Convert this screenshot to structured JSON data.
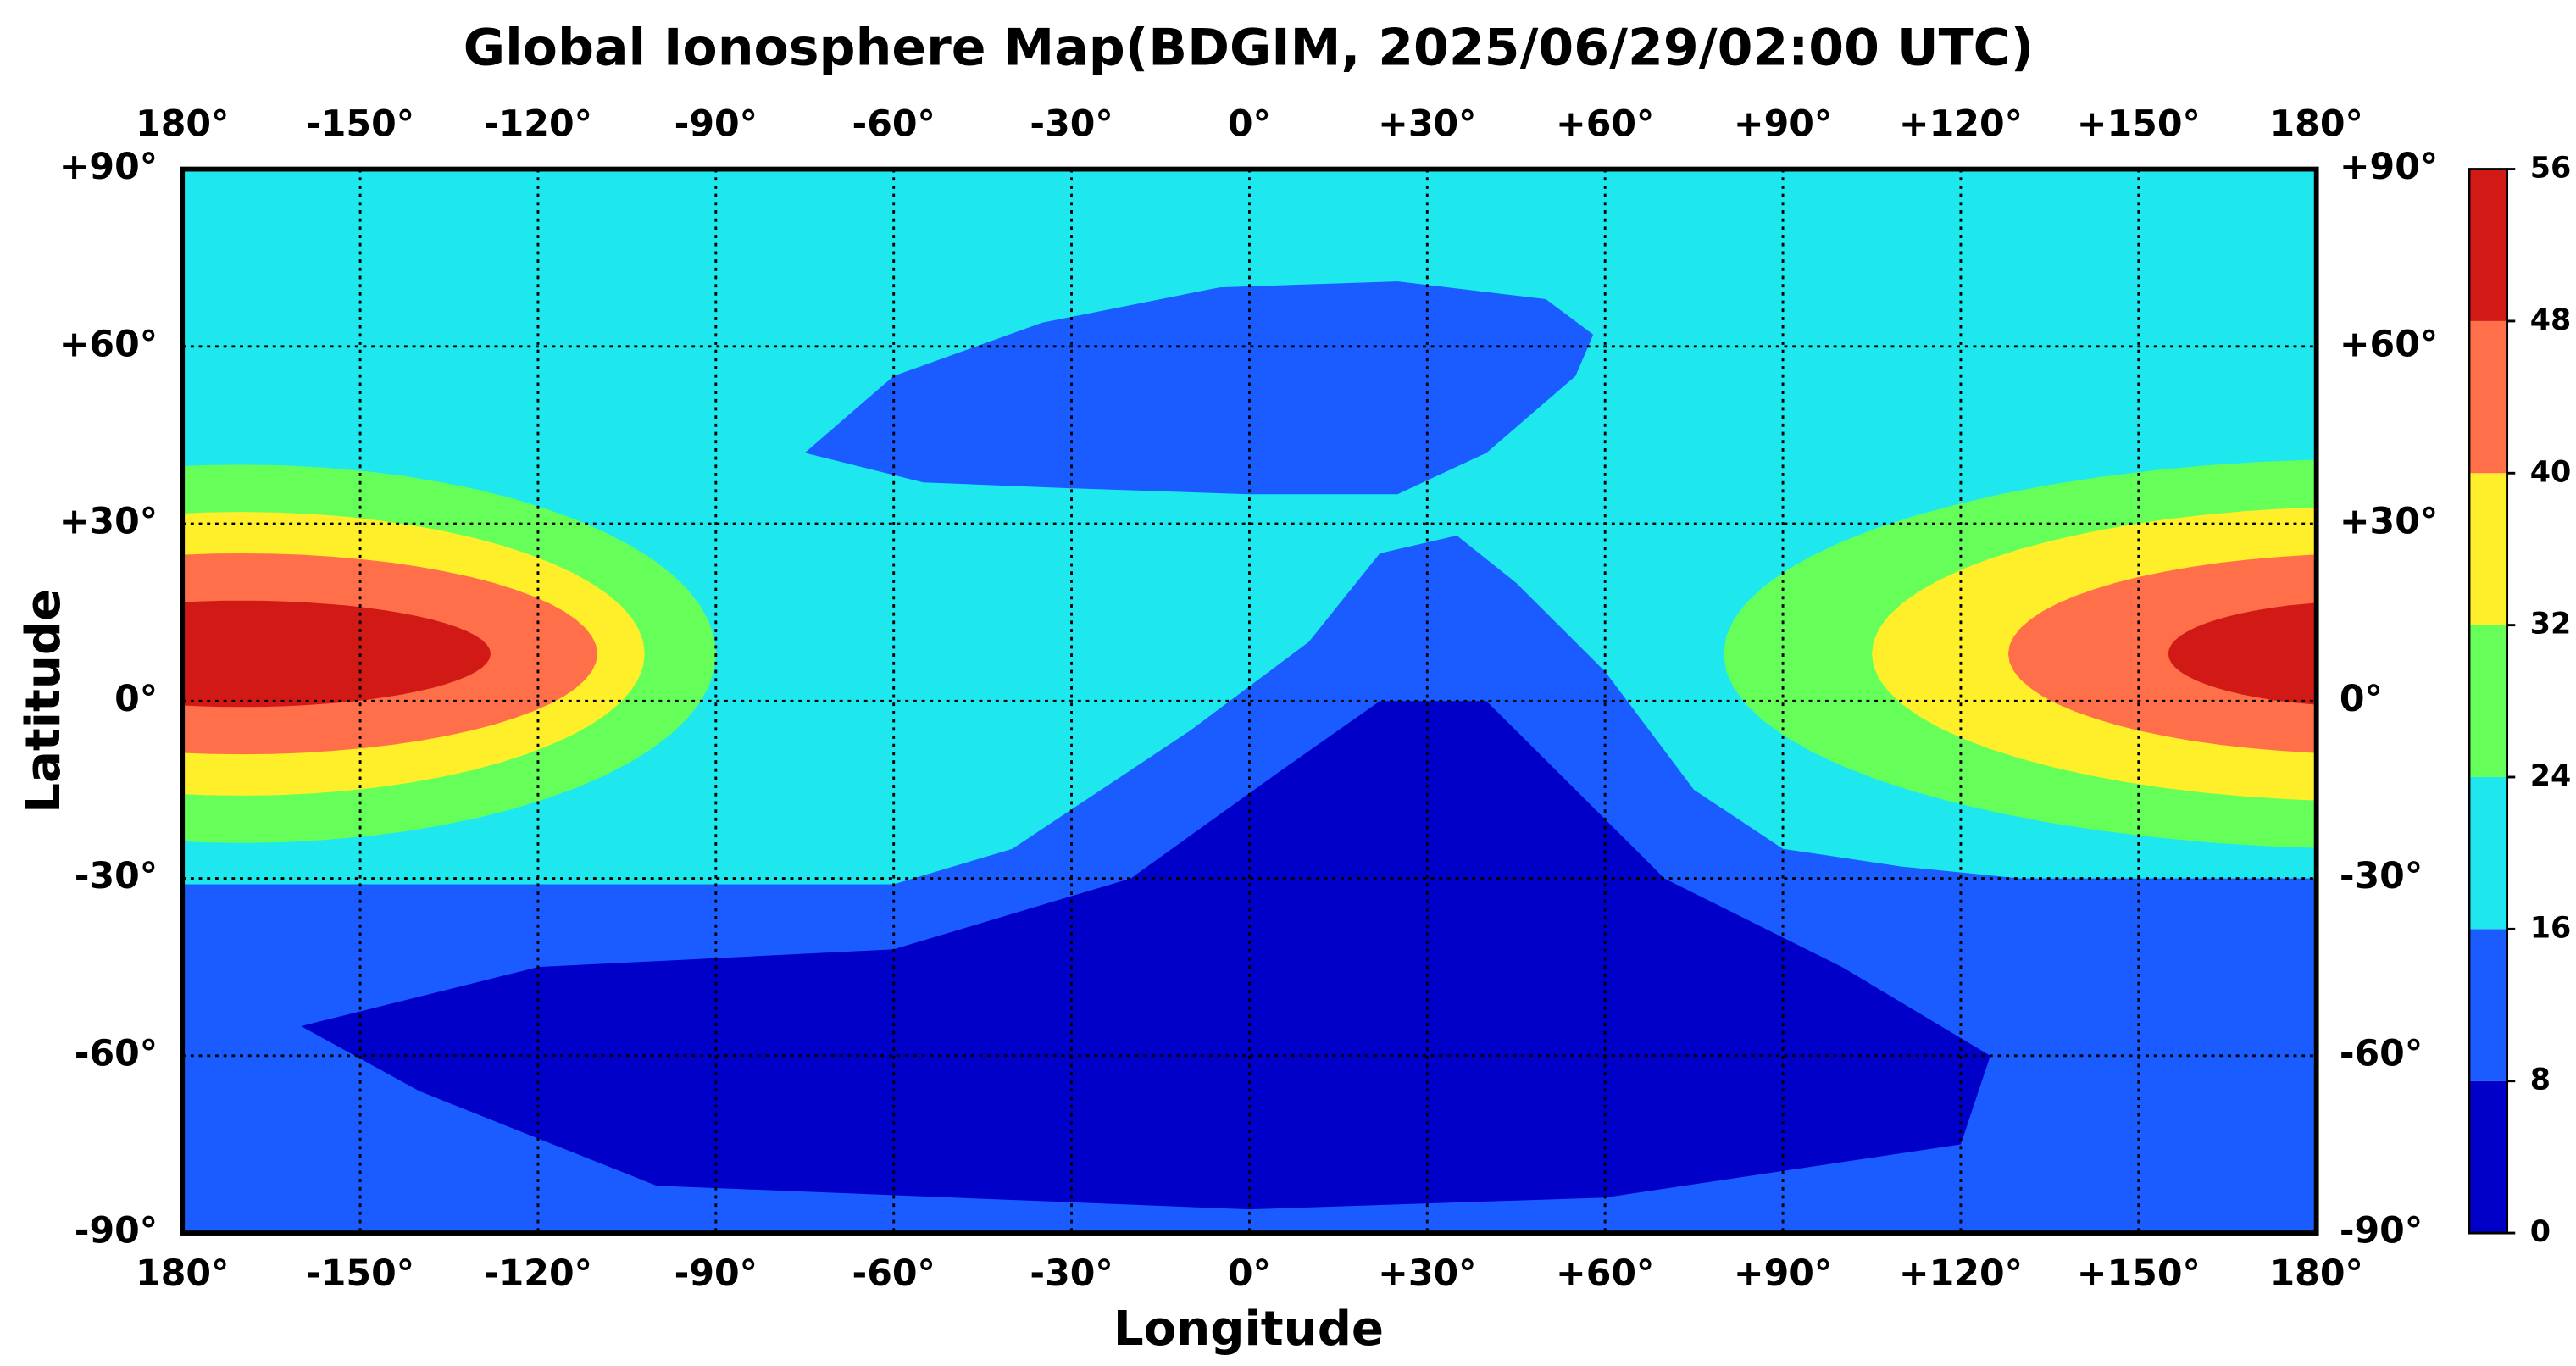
{
  "chart_data": {
    "type": "map",
    "title": "Global Ionosphere Map(BDGIM, 2025/06/29/02:00 UTC)",
    "xlabel": "Longitude",
    "ylabel": "Latitude",
    "xlim": [
      -180,
      180
    ],
    "ylim": [
      -90,
      90
    ],
    "xticks": [
      {
        "value": -180,
        "label": "180°"
      },
      {
        "value": -150,
        "label": "-150°"
      },
      {
        "value": -120,
        "label": "-120°"
      },
      {
        "value": -90,
        "label": "-90°"
      },
      {
        "value": -60,
        "label": "-60°"
      },
      {
        "value": -30,
        "label": "-30°"
      },
      {
        "value": 0,
        "label": "0°"
      },
      {
        "value": 30,
        "label": "+30°"
      },
      {
        "value": 60,
        "label": "+60°"
      },
      {
        "value": 90,
        "label": "+90°"
      },
      {
        "value": 120,
        "label": "+120°"
      },
      {
        "value": 150,
        "label": "+150°"
      },
      {
        "value": 180,
        "label": "180°"
      }
    ],
    "yticks": [
      {
        "value": -90,
        "label": "-90°"
      },
      {
        "value": -60,
        "label": "-60°"
      },
      {
        "value": -30,
        "label": "-30°"
      },
      {
        "value": 0,
        "label": "0°"
      },
      {
        "value": 30,
        "label": "+30°"
      },
      {
        "value": 60,
        "label": "+60°"
      },
      {
        "value": 90,
        "label": "+90°"
      }
    ],
    "grid": true,
    "levels": [
      0,
      8,
      16,
      24,
      32,
      40,
      48,
      56
    ],
    "colors": [
      "#0000c8",
      "#1a5cff",
      "#1ee8ee",
      "#66ff5a",
      "#ffef2b",
      "#ff6f4a",
      "#d11a15"
    ]
  }
}
